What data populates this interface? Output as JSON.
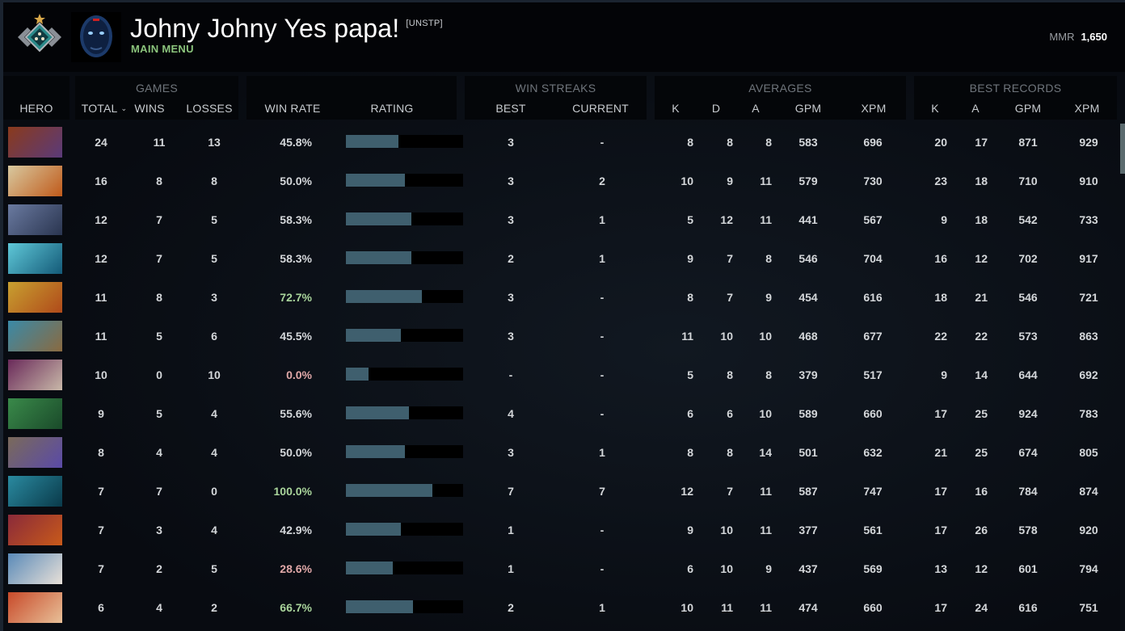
{
  "header": {
    "player_name": "Johny Johny Yes papa!",
    "player_tag": "[UNSTP]",
    "subtitle": "MAIN MENU",
    "mmr_label": "MMR",
    "mmr_value": "1,650",
    "rank_icon": "rank-medal-icon",
    "avatar_icon": "player-avatar"
  },
  "columns": {
    "groups": {
      "games": "GAMES",
      "win_streaks": "WIN STREAKS",
      "averages": "AVERAGES",
      "best_records": "BEST RECORDS"
    },
    "hero": "HERO",
    "total": "TOTAL",
    "sort_caret": "⌄",
    "wins": "WINS",
    "losses": "LOSSES",
    "win_rate": "WIN RATE",
    "rating": "RATING",
    "streak_best": "BEST",
    "streak_current": "CURRENT",
    "avg_k": "K",
    "avg_d": "D",
    "avg_a": "A",
    "avg_gpm": "GPM",
    "avg_xpm": "XPM",
    "best_k": "K",
    "best_a": "A",
    "best_gpm": "GPM",
    "best_xpm": "XPM"
  },
  "colors": {
    "win_rate_neutral": "#d4d7da",
    "win_rate_good": "#a9d49b",
    "win_rate_bad": "#e0a8a8",
    "rating_fill": "#3f5f6e",
    "rating_track": "#000000",
    "accent_green": "#8bc47c"
  },
  "rows": [
    {
      "hero": "anti-mage",
      "c1": "#8a3a1c",
      "c2": "#5a3a7a",
      "total": "24",
      "wins": "11",
      "losses": "13",
      "win_rate": "45.8%",
      "tone": "neutral",
      "rating_pct": 45,
      "streak_best": "3",
      "streak_current": "-",
      "avg_k": "8",
      "avg_d": "8",
      "avg_a": "8",
      "avg_gpm": "583",
      "avg_xpm": "696",
      "best_k": "20",
      "best_a": "17",
      "best_gpm": "871",
      "best_xpm": "929"
    },
    {
      "hero": "juggernaut",
      "c1": "#d8c9a0",
      "c2": "#c05a1a",
      "total": "16",
      "wins": "8",
      "losses": "8",
      "win_rate": "50.0%",
      "tone": "neutral",
      "rating_pct": 50,
      "streak_best": "3",
      "streak_current": "2",
      "avg_k": "10",
      "avg_d": "9",
      "avg_a": "11",
      "avg_gpm": "579",
      "avg_xpm": "730",
      "best_k": "23",
      "best_a": "18",
      "best_gpm": "710",
      "best_xpm": "910"
    },
    {
      "hero": "drow-ranger",
      "c1": "#6a7aa0",
      "c2": "#2a3550",
      "total": "12",
      "wins": "7",
      "losses": "5",
      "win_rate": "58.3%",
      "tone": "neutral",
      "rating_pct": 56,
      "streak_best": "3",
      "streak_current": "1",
      "avg_k": "5",
      "avg_d": "12",
      "avg_a": "11",
      "avg_gpm": "441",
      "avg_xpm": "567",
      "best_k": "9",
      "best_a": "18",
      "best_gpm": "542",
      "best_xpm": "733"
    },
    {
      "hero": "morphling",
      "c1": "#5fc8d8",
      "c2": "#145a78",
      "total": "12",
      "wins": "7",
      "losses": "5",
      "win_rate": "58.3%",
      "tone": "neutral",
      "rating_pct": 56,
      "streak_best": "2",
      "streak_current": "1",
      "avg_k": "9",
      "avg_d": "7",
      "avg_a": "8",
      "avg_gpm": "546",
      "avg_xpm": "704",
      "best_k": "16",
      "best_a": "12",
      "best_gpm": "702",
      "best_xpm": "917"
    },
    {
      "hero": "windranger",
      "c1": "#c8a030",
      "c2": "#b04a1a",
      "total": "11",
      "wins": "8",
      "losses": "3",
      "win_rate": "72.7%",
      "tone": "good",
      "rating_pct": 65,
      "streak_best": "3",
      "streak_current": "-",
      "avg_k": "8",
      "avg_d": "7",
      "avg_a": "9",
      "avg_gpm": "454",
      "avg_xpm": "616",
      "best_k": "18",
      "best_a": "21",
      "best_gpm": "546",
      "best_xpm": "721"
    },
    {
      "hero": "slark",
      "c1": "#3a8aa8",
      "c2": "#8a6a40",
      "total": "11",
      "wins": "5",
      "losses": "6",
      "win_rate": "45.5%",
      "tone": "neutral",
      "rating_pct": 47,
      "streak_best": "3",
      "streak_current": "-",
      "avg_k": "11",
      "avg_d": "10",
      "avg_a": "10",
      "avg_gpm": "468",
      "avg_xpm": "677",
      "best_k": "22",
      "best_a": "22",
      "best_gpm": "573",
      "best_xpm": "863"
    },
    {
      "hero": "invoker",
      "c1": "#6a2a5a",
      "c2": "#c8b8a8",
      "total": "10",
      "wins": "0",
      "losses": "10",
      "win_rate": "0.0%",
      "tone": "bad",
      "rating_pct": 19,
      "streak_best": "-",
      "streak_current": "-",
      "avg_k": "5",
      "avg_d": "8",
      "avg_a": "8",
      "avg_gpm": "379",
      "avg_xpm": "517",
      "best_k": "9",
      "best_a": "14",
      "best_gpm": "644",
      "best_xpm": "692"
    },
    {
      "hero": "medusa",
      "c1": "#3a8a4a",
      "c2": "#1a4a2a",
      "total": "9",
      "wins": "5",
      "losses": "4",
      "win_rate": "55.6%",
      "tone": "neutral",
      "rating_pct": 54,
      "streak_best": "4",
      "streak_current": "-",
      "avg_k": "6",
      "avg_d": "6",
      "avg_a": "10",
      "avg_gpm": "589",
      "avg_xpm": "660",
      "best_k": "17",
      "best_a": "25",
      "best_gpm": "924",
      "best_xpm": "783"
    },
    {
      "hero": "tinker",
      "c1": "#7a6a5a",
      "c2": "#5a4aa8",
      "total": "8",
      "wins": "4",
      "losses": "4",
      "win_rate": "50.0%",
      "tone": "neutral",
      "rating_pct": 50,
      "streak_best": "3",
      "streak_current": "1",
      "avg_k": "8",
      "avg_d": "8",
      "avg_a": "14",
      "avg_gpm": "501",
      "avg_xpm": "632",
      "best_k": "21",
      "best_a": "25",
      "best_gpm": "674",
      "best_xpm": "805"
    },
    {
      "hero": "phantom-assassin",
      "c1": "#2a8aa0",
      "c2": "#0a3a4a",
      "total": "7",
      "wins": "7",
      "losses": "0",
      "win_rate": "100.0%",
      "tone": "good",
      "rating_pct": 74,
      "streak_best": "7",
      "streak_current": "7",
      "avg_k": "12",
      "avg_d": "7",
      "avg_a": "11",
      "avg_gpm": "587",
      "avg_xpm": "747",
      "best_k": "17",
      "best_a": "16",
      "best_gpm": "784",
      "best_xpm": "874"
    },
    {
      "hero": "lion",
      "c1": "#8a2a3a",
      "c2": "#c85a1a",
      "total": "7",
      "wins": "3",
      "losses": "4",
      "win_rate": "42.9%",
      "tone": "neutral",
      "rating_pct": 47,
      "streak_best": "1",
      "streak_current": "-",
      "avg_k": "9",
      "avg_d": "10",
      "avg_a": "11",
      "avg_gpm": "377",
      "avg_xpm": "561",
      "best_k": "17",
      "best_a": "26",
      "best_gpm": "578",
      "best_xpm": "920"
    },
    {
      "hero": "sniper",
      "c1": "#5a8ab8",
      "c2": "#e8e0d8",
      "total": "7",
      "wins": "2",
      "losses": "5",
      "win_rate": "28.6%",
      "tone": "bad",
      "rating_pct": 40,
      "streak_best": "1",
      "streak_current": "-",
      "avg_k": "6",
      "avg_d": "10",
      "avg_a": "9",
      "avg_gpm": "437",
      "avg_xpm": "569",
      "best_k": "13",
      "best_a": "12",
      "best_gpm": "601",
      "best_xpm": "794"
    },
    {
      "hero": "bloodseeker",
      "c1": "#c84a2a",
      "c2": "#e8c098",
      "total": "6",
      "wins": "4",
      "losses": "2",
      "win_rate": "66.7%",
      "tone": "good",
      "rating_pct": 57,
      "streak_best": "2",
      "streak_current": "1",
      "avg_k": "10",
      "avg_d": "11",
      "avg_a": "11",
      "avg_gpm": "474",
      "avg_xpm": "660",
      "best_k": "17",
      "best_a": "24",
      "best_gpm": "616",
      "best_xpm": "751"
    }
  ]
}
